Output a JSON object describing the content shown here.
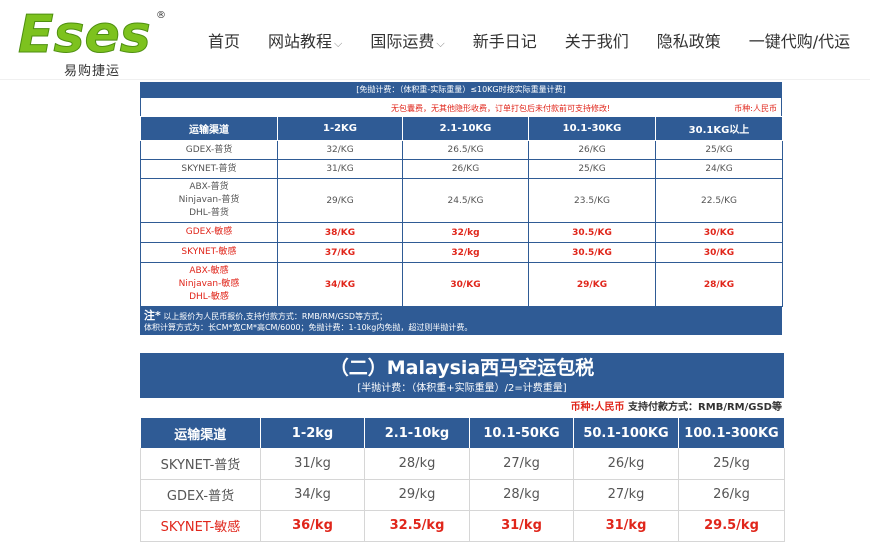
{
  "header": {
    "logo_text": "Eses",
    "logo_sub": "易购捷运",
    "logo_registered": "®",
    "nav": [
      {
        "label": "首页",
        "chevron": ""
      },
      {
        "label": "网站教程",
        "chevron": "⌵"
      },
      {
        "label": "国际运费",
        "chevron": "⌵"
      },
      {
        "label": "新手日记",
        "chevron": ""
      },
      {
        "label": "关于我们",
        "chevron": ""
      },
      {
        "label": "隐私政策",
        "chevron": ""
      },
      {
        "label": "一键代购/代运",
        "chevron": ""
      }
    ]
  },
  "table1": {
    "heading": "[免抛计费：（体积重-实际重量）≤10KG时按实际重量计费]",
    "note_center": "无包囊费，无其他隐形收费，订单打包后未付款前可支持修改!",
    "note_right": "币种:人民币",
    "columns": [
      "运输渠道",
      "1-2KG",
      "2.1-10KG",
      "10.1-30KG",
      "30.1KG以上"
    ],
    "rows": [
      {
        "channel": [
          "GDEX-普货"
        ],
        "values": [
          "32/KG",
          "26.5/KG",
          "26/KG",
          "25/KG"
        ],
        "style": "normal"
      },
      {
        "channel": [
          "SKYNET-普货"
        ],
        "values": [
          "31/KG",
          "26/KG",
          "25/KG",
          "24/KG"
        ],
        "style": "normal"
      },
      {
        "channel": [
          "ABX-普货",
          "Ninjavan-普货",
          "DHL-普货"
        ],
        "values": [
          "29/KG",
          "24.5/KG",
          "23.5/KG",
          "22.5/KG"
        ],
        "style": "normal"
      },
      {
        "channel": [
          "GDEX-敏感"
        ],
        "values": [
          "38/KG",
          "32/kg",
          "30.5/KG",
          "30/KG"
        ],
        "style": "red"
      },
      {
        "channel": [
          "SKYNET-敏感"
        ],
        "values": [
          "37/KG",
          "32/kg",
          "30.5/KG",
          "30/KG"
        ],
        "style": "red"
      },
      {
        "channel": [
          "ABX-敏感",
          "Ninjavan-敏感",
          "DHL-敏感"
        ],
        "values": [
          "34/KG",
          "30/KG",
          "29/KG",
          "28/KG"
        ],
        "style": "red"
      }
    ],
    "footnote_star": "注*",
    "footnote_line1": "以上报价为人民币报价,支持付款方式：RMB/RM/GSD等方式；",
    "footnote_line2": "体积计算方式为：长CM*宽CM*高CM/6000；免抛计费：1-10kg内免抛，超过则半抛计费。"
  },
  "table2": {
    "title": "（二）Malaysia西马空运包税",
    "subtitle": "[半抛计费：（体积重+实际重量）/2=计费重量]",
    "note_currency": "币种:人民币",
    "note_payment": "支持付款方式：RMB/RM/GSD等",
    "columns": [
      "运输渠道",
      "1-2kg",
      "2.1-10kg",
      "10.1-50KG",
      "50.1-100KG",
      "100.1-300KG"
    ],
    "rows": [
      {
        "channel": "SKYNET-普货",
        "values": [
          "31/kg",
          "28/kg",
          "27/kg",
          "26/kg",
          "25/kg"
        ],
        "style": "normal"
      },
      {
        "channel": "GDEX-普货",
        "values": [
          "34/kg",
          "29/kg",
          "28/kg",
          "27/kg",
          "26/kg"
        ],
        "style": "normal"
      },
      {
        "channel": "SKYNET-敏感",
        "values": [
          "36/kg",
          "32.5/kg",
          "31/kg",
          "31/kg",
          "29.5/kg"
        ],
        "style": "red"
      }
    ]
  },
  "colors": {
    "brand_green": "#7dc21e",
    "table_blue": "#2f5b95",
    "alert_red": "#e0261b"
  }
}
